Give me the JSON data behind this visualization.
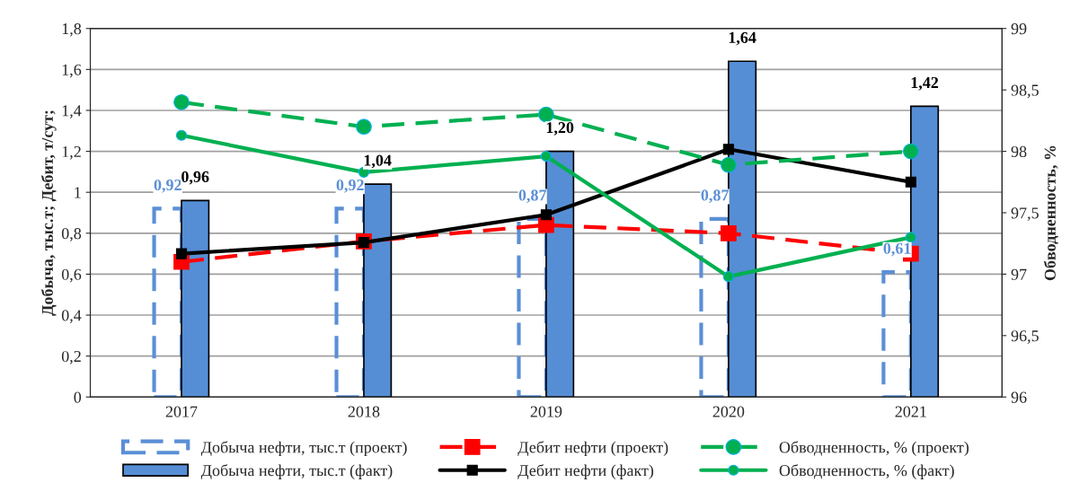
{
  "chart_data": {
    "type": "bar",
    "categories": [
      "2017",
      "2018",
      "2019",
      "2020",
      "2021"
    ],
    "ylabel": "Добыча, тыс.т; Дебит, т/сут;",
    "y2label": "Обводненность, %",
    "ylim": [
      0,
      1.8
    ],
    "yticks": [
      0,
      {
        "value": 0.2,
        "label": "0,2"
      },
      {
        "value": 0.4,
        "label": "0,4"
      },
      {
        "value": 0.6,
        "label": "0,6"
      },
      {
        "value": 0.8,
        "label": "0,8"
      },
      1,
      {
        "value": 1.2,
        "label": "1,2"
      },
      {
        "value": 1.4,
        "label": "1,4"
      },
      {
        "value": 1.6,
        "label": "1,6"
      },
      {
        "value": 1.8,
        "label": "1,8"
      }
    ],
    "y2lim": [
      96,
      99
    ],
    "y2ticks": [
      96,
      {
        "value": 96.5,
        "label": "96,5"
      },
      97,
      {
        "value": 97.5,
        "label": "97,5"
      },
      98,
      {
        "value": 98.5,
        "label": "98,5"
      },
      99
    ],
    "grid": "y",
    "legend": "bottom",
    "series": [
      {
        "name": "Добыча нефти, тыс.т (проект)",
        "line_style": "dashed",
        "color": "#5b8fd6",
        "values": [
          0.92,
          0.92,
          0.87,
          0.87,
          0.61
        ],
        "value_labels": [
          "0,92",
          "0,92",
          "0,87",
          "0,87",
          "0,61"
        ]
      },
      {
        "name": "Добыча нефти, тыс.т (факт)",
        "line_style": "solid",
        "color": "#558ed5",
        "values": [
          0.96,
          1.04,
          1.2,
          1.64,
          1.42
        ],
        "value_labels": [
          "0,96",
          "1,04",
          "1,20",
          "1,64",
          "1,42"
        ]
      },
      {
        "name": "Дебит нефти (проект)",
        "type": "line",
        "line_style": "dashed",
        "marker": "square",
        "color": "#ff0000",
        "values": [
          0.66,
          0.76,
          0.84,
          0.8,
          0.7
        ]
      },
      {
        "name": "Дебит нефти (факт)",
        "type": "line",
        "line_style": "solid",
        "marker": "square",
        "color": "#000000",
        "values": [
          0.7,
          0.755,
          0.89,
          1.21,
          1.05
        ]
      },
      {
        "name": "Обводненность, % (проект)",
        "type": "line",
        "axis": "y2",
        "line_style": "dashed",
        "marker": "circle",
        "color": "#00b050",
        "values": [
          98.4,
          98.2,
          98.3,
          97.89,
          98.0
        ]
      },
      {
        "name": "Обводненность, % (факт)",
        "type": "line",
        "axis": "y2",
        "line_style": "solid",
        "marker": "circle",
        "color": "#00b050",
        "values": [
          98.13,
          97.83,
          97.96,
          96.98,
          97.3
        ]
      }
    ]
  }
}
